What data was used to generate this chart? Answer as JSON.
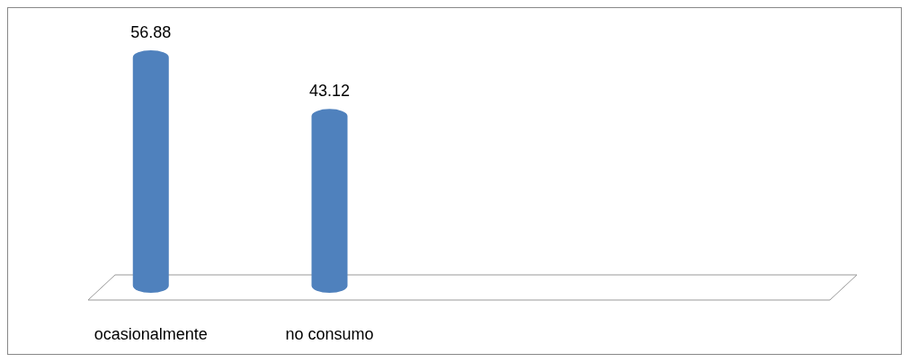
{
  "chart_data": {
    "type": "bar",
    "categories": [
      "ocasionalmente",
      "no consumo",
      null,
      null
    ],
    "values": [
      56.88,
      43.12,
      null,
      null
    ],
    "color": "#4f81bd",
    "data_labels": true
  }
}
